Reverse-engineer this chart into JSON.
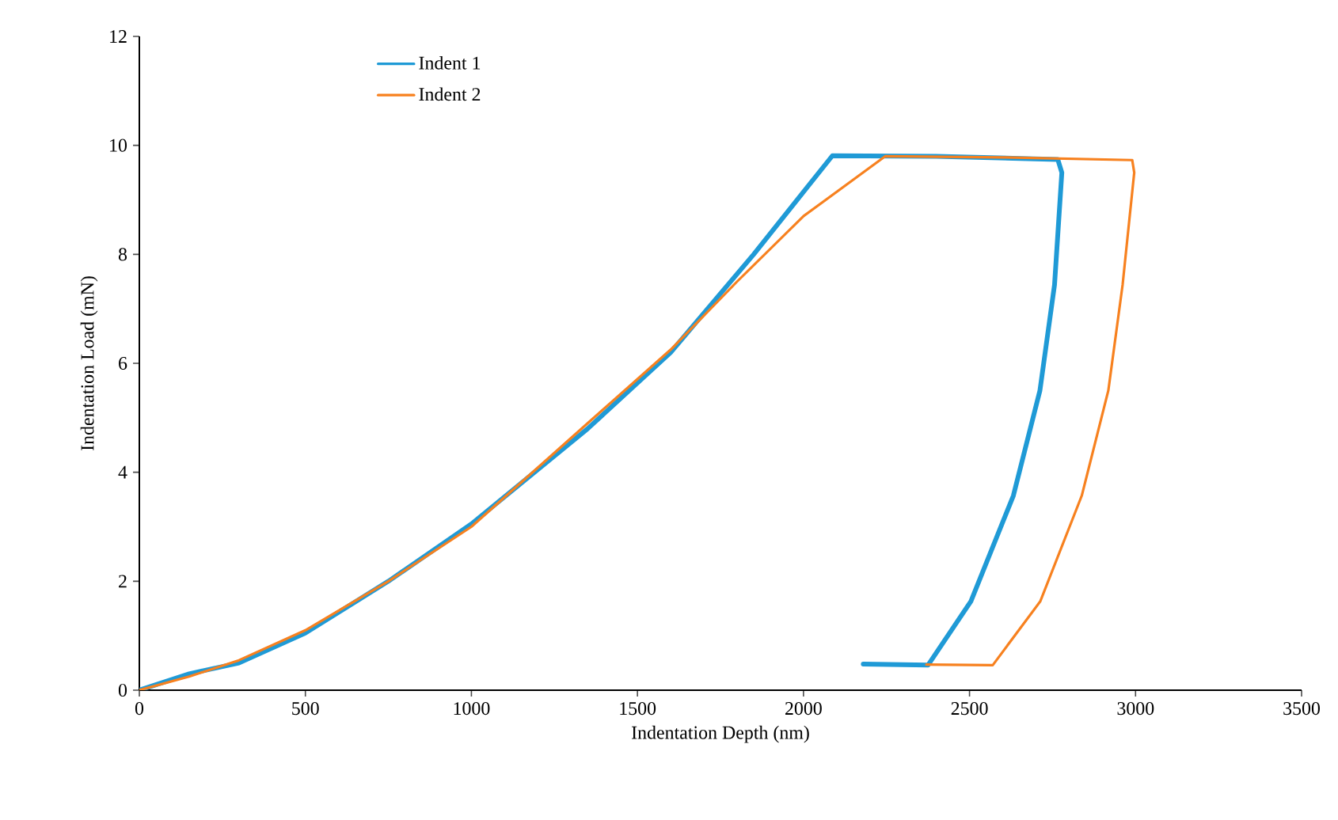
{
  "chart_data": {
    "type": "line",
    "xlabel": "Indentation Depth (nm)",
    "ylabel": "Indentation Load (mN)",
    "xlim": [
      0,
      3500
    ],
    "ylim": [
      0,
      12
    ],
    "xticks": [
      0,
      500,
      1000,
      1500,
      2000,
      2500,
      3000,
      3500
    ],
    "yticks": [
      0,
      2,
      4,
      6,
      8,
      10,
      12
    ],
    "grid": false,
    "legend": "top left",
    "marker": "none",
    "line_style": "solid",
    "series": [
      {
        "name": "Indent 1",
        "color": "#1f9ad6",
        "x": [
          0,
          150,
          300,
          500,
          750,
          1000,
          1350,
          1600,
          1850,
          2087,
          2400,
          2766,
          2778,
          2756,
          2712,
          2632,
          2504,
          2375,
          2180
        ],
        "values": [
          0,
          0.3,
          0.5,
          1.05,
          2.0,
          3.05,
          4.8,
          6.2,
          8.0,
          9.81,
          9.8,
          9.74,
          9.5,
          7.44,
          5.5,
          3.57,
          1.63,
          0.46,
          0.48
        ]
      },
      {
        "name": "Indent 2",
        "color": "#f7811f",
        "x": [
          0,
          150,
          300,
          500,
          750,
          1000,
          1350,
          1600,
          1800,
          2000,
          2246,
          2600,
          2990,
          2996,
          2961,
          2918,
          2838,
          2713,
          2570,
          2370
        ],
        "values": [
          0,
          0.25,
          0.55,
          1.1,
          2.0,
          3.0,
          4.9,
          6.25,
          7.5,
          8.7,
          9.8,
          9.78,
          9.73,
          9.5,
          7.44,
          5.5,
          3.57,
          1.63,
          0.46,
          0.47
        ]
      }
    ]
  }
}
